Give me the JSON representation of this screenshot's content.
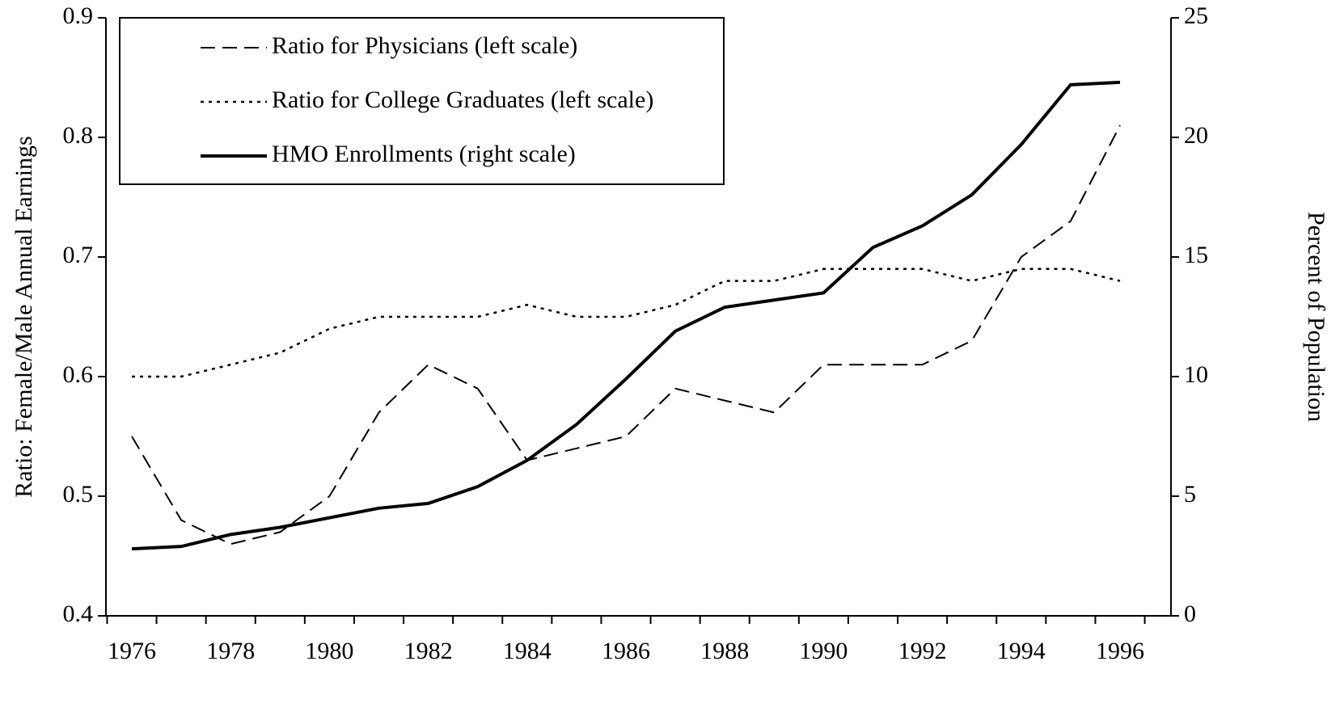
{
  "chart_data": {
    "type": "line",
    "categories": [
      "1976",
      null,
      "1978",
      null,
      "1980",
      null,
      "1982",
      null,
      "1984",
      null,
      "1986",
      null,
      "1988",
      null,
      "1990",
      null,
      "1992",
      null,
      "1994",
      null,
      "1996"
    ],
    "ylabel": "Ratio:  Female/Male Annual Earnings",
    "y2label": "Percent of Population",
    "ylim": [
      0.4,
      0.9
    ],
    "yticks": [
      {
        "value": 0.4,
        "label": "0.4"
      },
      {
        "value": 0.5,
        "label": "0.5"
      },
      {
        "value": 0.6,
        "label": "0.6"
      },
      {
        "value": 0.7,
        "label": "0.7"
      },
      {
        "value": 0.8,
        "label": "0.8"
      },
      {
        "value": 0.9,
        "label": "0.9"
      }
    ],
    "y2lim": [
      0,
      25
    ],
    "y2ticks": [
      0,
      5,
      10,
      15,
      20,
      25
    ],
    "legend": "upper left",
    "series": [
      {
        "name": "Ratio for Physicians (left scale)",
        "color": "#000000",
        "dash": "dashed",
        "values": [
          0.55,
          0.48,
          0.46,
          0.47,
          0.5,
          0.57,
          0.61,
          0.59,
          0.53,
          0.54,
          0.55,
          0.59,
          0.58,
          0.57,
          0.61,
          0.61,
          0.61,
          0.63,
          0.7,
          0.73,
          0.81
        ]
      },
      {
        "name": "Ratio for College Graduates (left scale)",
        "color": "#000000",
        "dash": "dotted",
        "values": [
          0.6,
          0.6,
          0.61,
          0.62,
          0.64,
          0.65,
          0.65,
          0.65,
          0.66,
          0.65,
          0.65,
          0.66,
          0.68,
          0.68,
          0.69,
          0.69,
          0.69,
          0.68,
          0.69,
          0.69,
          0.68
        ]
      },
      {
        "name": "HMO Enrollments (right scale)",
        "color": "#000000",
        "dash": "solid",
        "axis": "y2",
        "values": [
          2.8,
          2.9,
          3.4,
          3.7,
          4.1,
          4.5,
          4.7,
          5.4,
          6.5,
          8.0,
          9.9,
          11.9,
          12.9,
          13.2,
          13.5,
          15.4,
          16.3,
          17.6,
          19.7,
          22.2,
          22.3
        ]
      }
    ]
  }
}
